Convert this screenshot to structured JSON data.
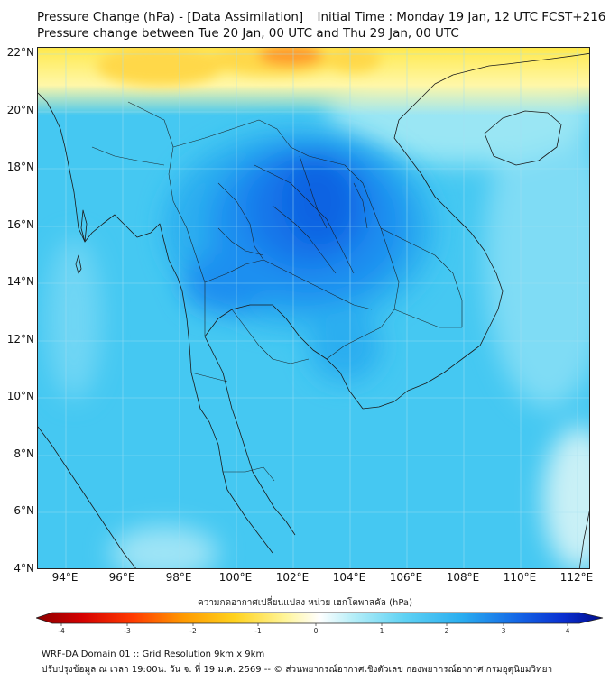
{
  "title": {
    "line1": "Pressure Change (hPa) - [Data Assimilation] _ Initial Time : Monday 19 Jan, 12 UTC FCST+216",
    "line2": "Pressure change between Tue 20 Jan, 00 UTC and Thu 29 Jan, 00 UTC"
  },
  "map": {
    "lat_ticks": [
      "22°N",
      "20°N",
      "18°N",
      "16°N",
      "14°N",
      "12°N",
      "10°N",
      "8°N",
      "6°N",
      "4°N"
    ],
    "lon_ticks": [
      "94°E",
      "96°E",
      "98°E",
      "100°E",
      "102°E",
      "104°E",
      "106°E",
      "108°E",
      "110°E",
      "112°E"
    ],
    "lat_range": [
      4,
      22
    ],
    "lon_range": [
      93,
      112.5
    ],
    "colors": {
      "ocean_base": "#45c8f2",
      "land_line": "#1a1a1a",
      "grid": "#9fd8ee"
    }
  },
  "colorbar": {
    "label": "ความกดอากาศเปลี่ยนแปลง หน่วย เฮกโตพาสคัล (hPa)",
    "ticks": [
      "-4",
      "-3",
      "-2",
      "-1",
      "0",
      "1",
      "2",
      "3",
      "4"
    ],
    "range": [
      -4,
      4
    ]
  },
  "footer": {
    "line1": "WRF-DA Domain 01 :: Grid Resolution 9km x 9km",
    "line2": "ปรับปรุงข้อมูล ณ เวลา 19:00น. วัน จ. ที่ 19 ม.ค. 2569 -- © ส่วนพยากรณ์อากาศเชิงตัวเลข กองพยากรณ์อากาศ กรมอุตุนิยมวิทยา"
  }
}
